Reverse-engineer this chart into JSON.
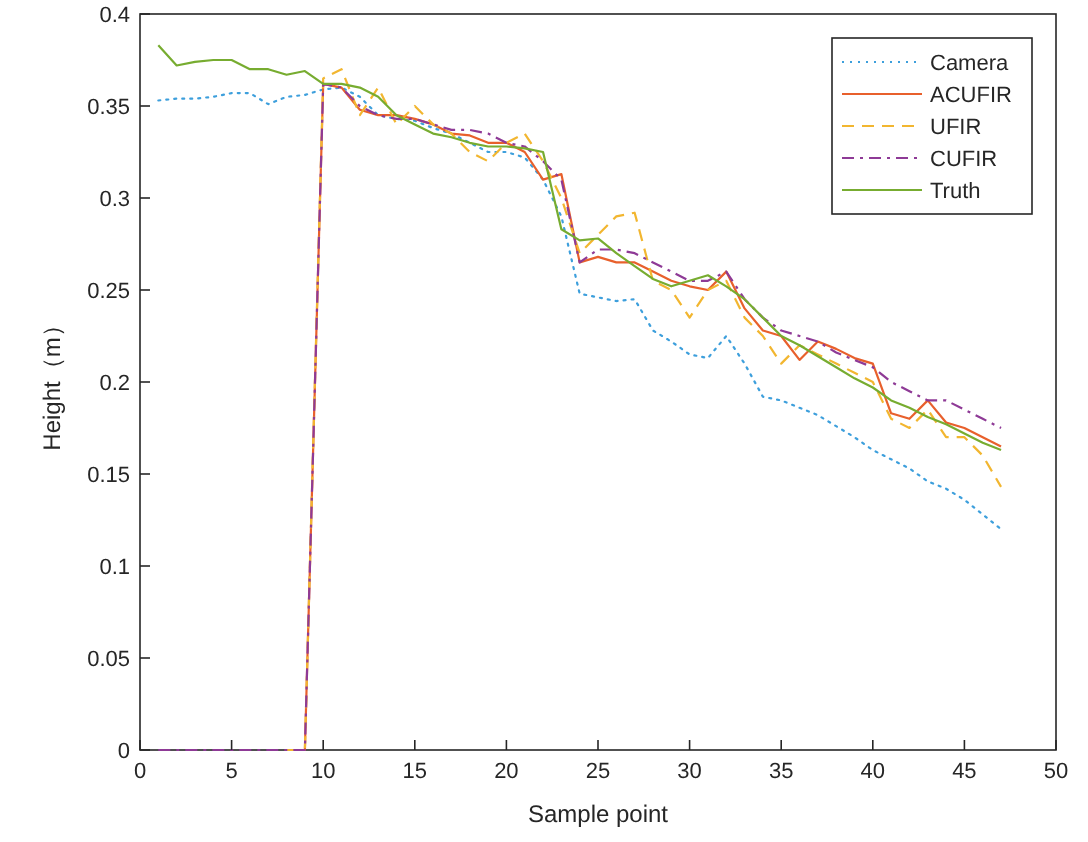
{
  "chart_data": {
    "type": "line",
    "xlabel": "Sample point",
    "ylabel": "Height（m）",
    "xlim": [
      0,
      50
    ],
    "ylim": [
      0,
      0.4
    ],
    "xticks": [
      0,
      5,
      10,
      15,
      20,
      25,
      30,
      35,
      40,
      45,
      50
    ],
    "yticks": [
      0,
      0.05,
      0.1,
      0.15,
      0.2,
      0.25,
      0.3,
      0.35,
      0.4
    ],
    "grid": false,
    "legend": "top right",
    "marker": "none",
    "x": [
      1,
      2,
      3,
      4,
      5,
      6,
      7,
      8,
      9,
      10,
      11,
      12,
      13,
      14,
      15,
      16,
      17,
      18,
      19,
      20,
      21,
      22,
      23,
      24,
      25,
      26,
      27,
      28,
      29,
      30,
      31,
      32,
      33,
      34,
      35,
      36,
      37,
      38,
      39,
      40,
      41,
      42,
      43,
      44,
      45,
      46,
      47
    ],
    "series": [
      {
        "name": "Camera",
        "color": "#3d9fdc",
        "line_style": "dotted",
        "values": [
          0.353,
          0.354,
          0.354,
          0.355,
          0.357,
          0.357,
          0.351,
          0.355,
          0.356,
          0.359,
          0.36,
          0.355,
          0.345,
          0.343,
          0.342,
          0.338,
          0.335,
          0.33,
          0.325,
          0.325,
          0.322,
          0.31,
          0.29,
          0.248,
          0.246,
          0.244,
          0.245,
          0.228,
          0.222,
          0.215,
          0.213,
          0.225,
          0.21,
          0.192,
          0.19,
          0.186,
          0.182,
          0.176,
          0.17,
          0.163,
          0.158,
          0.153,
          0.146,
          0.142,
          0.136,
          0.128,
          0.12
        ]
      },
      {
        "name": "ACUFIR",
        "color": "#e8602c",
        "line_style": "solid",
        "values": [
          null,
          null,
          null,
          null,
          null,
          null,
          null,
          0,
          0,
          0.362,
          0.36,
          0.348,
          0.345,
          0.345,
          0.343,
          0.34,
          0.335,
          0.334,
          0.33,
          0.33,
          0.325,
          0.31,
          0.313,
          0.265,
          0.268,
          0.265,
          0.265,
          0.26,
          0.255,
          0.252,
          0.25,
          0.26,
          0.24,
          0.228,
          0.225,
          0.212,
          0.222,
          0.218,
          0.213,
          0.21,
          0.183,
          0.18,
          0.19,
          0.178,
          0.175,
          0.17,
          0.165
        ]
      },
      {
        "name": "UFIR",
        "color": "#f2b630",
        "line_style": "dashed",
        "values": [
          null,
          null,
          null,
          null,
          null,
          null,
          null,
          0,
          0,
          0.365,
          0.37,
          0.345,
          0.36,
          0.34,
          0.35,
          0.34,
          0.335,
          0.325,
          0.32,
          0.33,
          0.335,
          0.32,
          0.3,
          0.27,
          0.28,
          0.29,
          0.292,
          0.255,
          0.25,
          0.235,
          0.25,
          0.255,
          0.235,
          0.225,
          0.21,
          0.22,
          0.215,
          0.21,
          0.205,
          0.2,
          0.18,
          0.175,
          0.185,
          0.17,
          0.17,
          0.16,
          0.143
        ]
      },
      {
        "name": "CUFIR",
        "color": "#8e3a96",
        "line_style": "dashdot",
        "values": [
          0,
          0,
          0,
          0,
          0,
          0,
          0,
          0,
          0,
          0.362,
          0.36,
          0.35,
          0.345,
          0.343,
          0.343,
          0.34,
          0.337,
          0.337,
          0.335,
          0.33,
          0.328,
          0.32,
          0.31,
          0.265,
          0.272,
          0.272,
          0.27,
          0.265,
          0.26,
          0.255,
          0.255,
          0.26,
          0.245,
          0.235,
          0.228,
          0.225,
          0.222,
          0.216,
          0.212,
          0.208,
          0.2,
          0.195,
          0.19,
          0.19,
          0.185,
          0.18,
          0.175
        ]
      },
      {
        "name": "Truth",
        "color": "#77ac30",
        "line_style": "solid",
        "values": [
          0.383,
          0.372,
          0.374,
          0.375,
          0.375,
          0.37,
          0.37,
          0.367,
          0.369,
          0.362,
          0.362,
          0.36,
          0.355,
          0.345,
          0.34,
          0.335,
          0.333,
          0.33,
          0.328,
          0.328,
          0.327,
          0.325,
          0.283,
          0.277,
          0.278,
          0.27,
          0.263,
          0.256,
          0.252,
          0.255,
          0.258,
          0.252,
          0.245,
          0.235,
          0.225,
          0.22,
          0.214,
          0.208,
          0.202,
          0.197,
          0.19,
          0.186,
          0.181,
          0.177,
          0.172,
          0.167,
          0.163
        ]
      }
    ]
  }
}
